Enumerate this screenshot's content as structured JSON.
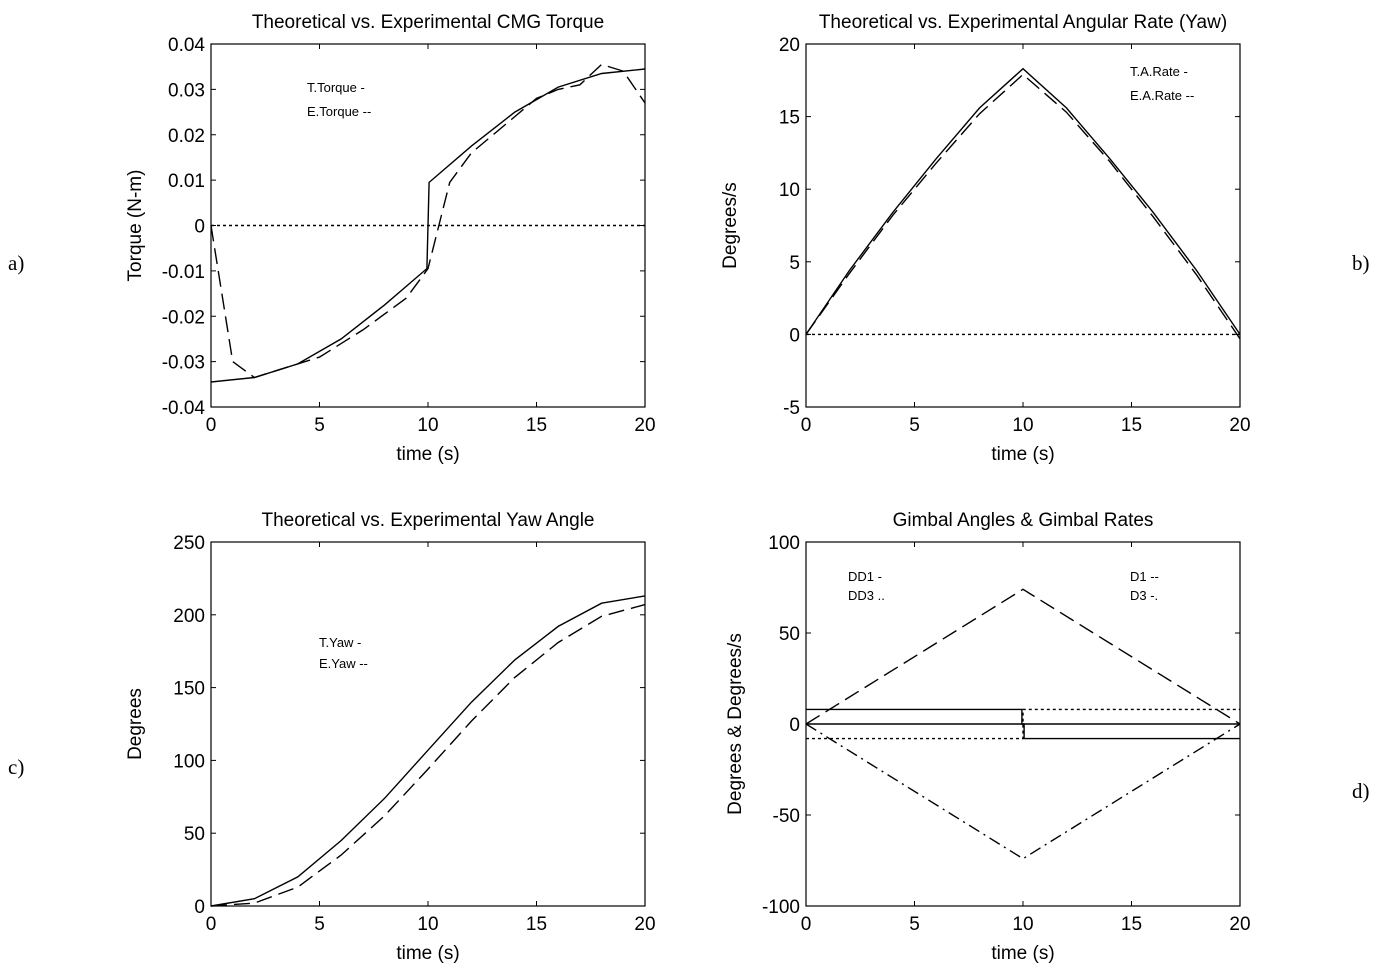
{
  "chart_data": [
    {
      "id": "a",
      "panel_label": "a)",
      "type": "line",
      "title": "Theoretical vs. Experimental CMG Torque",
      "xlabel": "time (s)",
      "ylabel": "Torque (N-m)",
      "xlim": [
        0,
        20
      ],
      "ylim": [
        -0.04,
        0.04
      ],
      "xticks": [
        0,
        5,
        10,
        15,
        20
      ],
      "xtick_labels": [
        "0",
        "5",
        "10",
        "15",
        "20"
      ],
      "yticks": [
        -0.04,
        -0.03,
        -0.02,
        -0.01,
        0,
        0.01,
        0.02,
        0.03,
        0.04
      ],
      "ytick_labels": [
        "-0.04",
        "-0.03",
        "-0.02",
        "-0.01",
        "0",
        "0.01",
        "0.02",
        "0.03",
        "0.04"
      ],
      "grid": false,
      "legend_placement": "upper-left",
      "legend": [
        "T.Torque  -",
        "E.Torque --"
      ],
      "series": [
        {
          "style": "solid",
          "x": [
            0,
            2,
            4,
            6,
            8,
            9.95,
            10.05,
            12,
            14,
            16,
            18,
            20
          ],
          "y": [
            -0.0345,
            -0.0335,
            -0.0305,
            -0.025,
            -0.0175,
            -0.0095,
            0.0095,
            0.0175,
            0.025,
            0.0305,
            0.0335,
            0.0345
          ]
        },
        {
          "style": "dashed",
          "x": [
            0,
            1,
            2,
            3,
            5,
            7,
            9,
            10,
            11,
            12,
            13,
            14,
            15,
            16,
            17,
            18,
            19,
            20
          ],
          "y": [
            0,
            -0.03,
            -0.0335,
            -0.032,
            -0.029,
            -0.023,
            -0.016,
            -0.0095,
            0.0095,
            0.016,
            0.02,
            0.024,
            0.028,
            0.03,
            0.031,
            0.0355,
            0.034,
            0.027
          ]
        },
        {
          "style": "dotted",
          "x": [
            0,
            20
          ],
          "y": [
            0,
            0
          ]
        }
      ]
    },
    {
      "id": "b",
      "panel_label": "b)",
      "type": "line",
      "title": "Theoretical vs. Experimental Angular Rate (Yaw)",
      "xlabel": "time (s)",
      "ylabel": "Degrees/s",
      "xlim": [
        0,
        20
      ],
      "ylim": [
        -5,
        20
      ],
      "xticks": [
        0,
        5,
        10,
        15,
        20
      ],
      "xtick_labels": [
        "0",
        "5",
        "10",
        "15",
        "20"
      ],
      "yticks": [
        -5,
        0,
        5,
        10,
        15,
        20
      ],
      "ytick_labels": [
        "-5",
        "0",
        "5",
        "10",
        "15",
        "20"
      ],
      "grid": false,
      "legend_placement": "upper-right",
      "legend": [
        "T.A.Rate  -",
        "E.A.Rate --"
      ],
      "series": [
        {
          "style": "solid",
          "x": [
            0,
            2,
            4,
            6,
            8,
            10,
            12,
            14,
            16,
            18,
            20
          ],
          "y": [
            0,
            4.4,
            8.4,
            12.1,
            15.6,
            18.3,
            15.6,
            12.1,
            8.4,
            4.4,
            0
          ]
        },
        {
          "style": "dashed",
          "x": [
            0,
            2,
            4,
            6,
            8,
            10,
            12,
            14,
            16,
            18,
            20
          ],
          "y": [
            0,
            4.2,
            8.2,
            11.8,
            15.2,
            17.9,
            15.3,
            11.9,
            8.1,
            4.1,
            -0.3
          ]
        },
        {
          "style": "dotted",
          "x": [
            0,
            20
          ],
          "y": [
            0,
            0
          ]
        }
      ]
    },
    {
      "id": "c",
      "panel_label": "c)",
      "type": "line",
      "title": "Theoretical vs. Experimental Yaw Angle",
      "xlabel": "time (s)",
      "ylabel": "Degrees",
      "xlim": [
        0,
        20
      ],
      "ylim": [
        0,
        250
      ],
      "xticks": [
        0,
        5,
        10,
        15,
        20
      ],
      "xtick_labels": [
        "0",
        "5",
        "10",
        "15",
        "20"
      ],
      "yticks": [
        0,
        50,
        100,
        150,
        200,
        250
      ],
      "ytick_labels": [
        "0",
        "50",
        "100",
        "150",
        "200",
        "250"
      ],
      "grid": false,
      "legend_placement": "center-left",
      "legend": [
        "T.Yaw  -",
        "E.Yaw --"
      ],
      "series": [
        {
          "style": "solid",
          "x": [
            0,
            2,
            4,
            6,
            8,
            10,
            12,
            14,
            16,
            18,
            20
          ],
          "y": [
            0,
            5,
            20,
            45,
            74,
            107,
            140,
            169,
            192,
            208,
            213
          ]
        },
        {
          "style": "dashed",
          "x": [
            0,
            2,
            4,
            6,
            8,
            10,
            12,
            14,
            16,
            18,
            20
          ],
          "y": [
            0,
            2,
            13,
            35,
            62,
            94,
            127,
            157,
            181,
            199,
            207
          ]
        }
      ]
    },
    {
      "id": "d",
      "panel_label": "d)",
      "type": "line",
      "title": "Gimbal Angles & Gimbal Rates",
      "xlabel": "time (s)",
      "ylabel": "Degrees & Degrees/s",
      "xlim": [
        0,
        20
      ],
      "ylim": [
        -100,
        100
      ],
      "xticks": [
        0,
        5,
        10,
        15,
        20
      ],
      "xtick_labels": [
        "0",
        "5",
        "10",
        "15",
        "20"
      ],
      "yticks": [
        -100,
        -50,
        0,
        50,
        100
      ],
      "ytick_labels": [
        "-100",
        "-50",
        "0",
        "50",
        "100"
      ],
      "grid": false,
      "legend_placement": "top",
      "legend": [
        "DD1  -",
        "DD3  ..",
        "D1  --",
        "D3  -."
      ],
      "series": [
        {
          "style": "solid",
          "x": [
            0,
            9.95,
            9.95,
            10.05,
            10.05,
            20
          ],
          "y": [
            8,
            8,
            0,
            0,
            -8,
            -8
          ]
        },
        {
          "style": "solid",
          "x": [
            0,
            20
          ],
          "y": [
            0,
            0
          ]
        },
        {
          "style": "dotted",
          "x": [
            0,
            10,
            10,
            20
          ],
          "y": [
            -8,
            -8,
            8,
            8
          ]
        },
        {
          "style": "dashed",
          "x": [
            0,
            10,
            20
          ],
          "y": [
            0,
            74,
            0
          ]
        },
        {
          "style": "dashdot",
          "x": [
            0,
            10,
            20
          ],
          "y": [
            0,
            -74,
            0
          ]
        }
      ]
    }
  ]
}
